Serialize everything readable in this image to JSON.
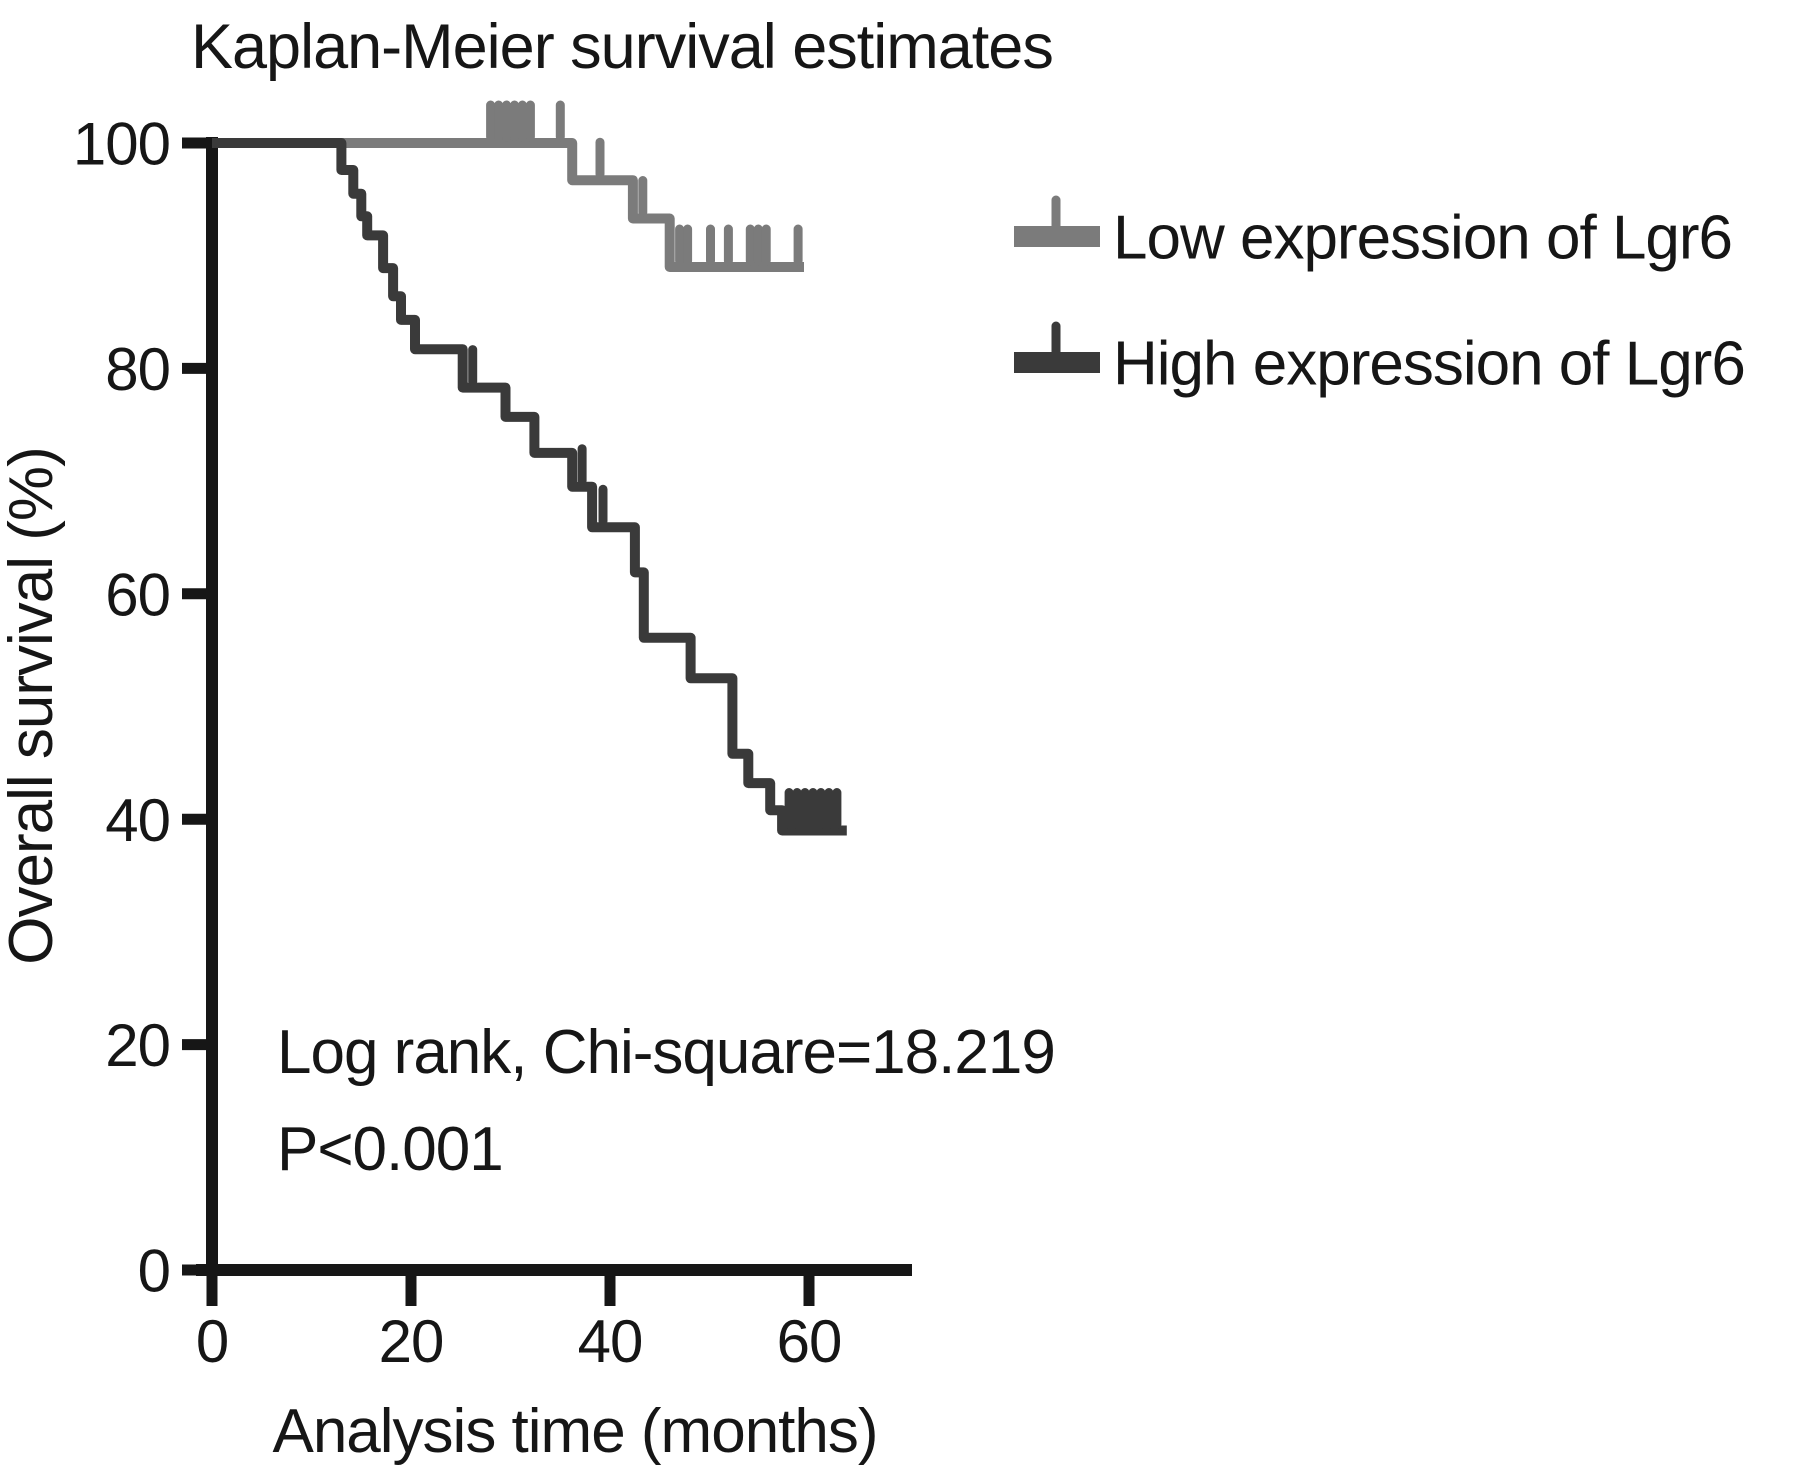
{
  "title": "Kaplan-Meier survival estimates",
  "annotation": {
    "line1": "Log rank, Chi-square=18.219",
    "line2": "P<0.001"
  },
  "legend": [
    {
      "label": "Low expression of Lgr6",
      "color": "#7b7b7b"
    },
    {
      "label": "High expression of Lgr6",
      "color": "#3a3a3a"
    }
  ],
  "colors": {
    "axis": "#161616",
    "text": "#161616",
    "background": "#ffffff"
  },
  "chart_data": {
    "type": "line",
    "subtype": "kaplan-meier-step",
    "title": "Kaplan-Meier survival estimates",
    "xlabel": "Analysis time (months)",
    "ylabel": "Overall survival (%)",
    "xlim": [
      0,
      70
    ],
    "ylim": [
      0,
      100
    ],
    "x_ticks": [
      0,
      20,
      40,
      60
    ],
    "y_ticks": [
      0,
      20,
      40,
      60,
      80,
      100
    ],
    "grid": false,
    "legend_position": "right",
    "series": [
      {
        "name": "Low expression of Lgr6",
        "color": "#7b7b7b",
        "points": [
          [
            0,
            100
          ],
          [
            36.2,
            100
          ],
          [
            36.2,
            96.7
          ],
          [
            42.3,
            96.7
          ],
          [
            42.3,
            93.3
          ],
          [
            46,
            93.3
          ],
          [
            46,
            89
          ],
          [
            59.5,
            89
          ]
        ],
        "censors": [
          [
            28,
            100
          ],
          [
            28.8,
            100
          ],
          [
            29.6,
            100
          ],
          [
            30.4,
            100
          ],
          [
            31.2,
            100
          ],
          [
            32,
            100
          ],
          [
            35,
            100
          ],
          [
            39,
            96.7
          ],
          [
            43.3,
            93.3
          ],
          [
            47,
            89
          ],
          [
            47.8,
            89
          ],
          [
            50.1,
            89
          ],
          [
            51.9,
            89
          ],
          [
            54.1,
            89
          ],
          [
            54.9,
            89
          ],
          [
            55.7,
            89
          ],
          [
            58.9,
            89
          ]
        ]
      },
      {
        "name": "High expression of Lgr6",
        "color": "#3a3a3a",
        "points": [
          [
            0,
            100
          ],
          [
            13,
            100
          ],
          [
            13,
            97.6
          ],
          [
            14.2,
            97.6
          ],
          [
            14.2,
            95.5
          ],
          [
            15,
            95.5
          ],
          [
            15,
            93.5
          ],
          [
            15.6,
            93.5
          ],
          [
            15.6,
            91.8
          ],
          [
            17.2,
            91.8
          ],
          [
            17.2,
            88.9
          ],
          [
            18.2,
            88.9
          ],
          [
            18.2,
            86.4
          ],
          [
            19,
            86.4
          ],
          [
            19,
            84.3
          ],
          [
            20.4,
            84.3
          ],
          [
            20.4,
            81.7
          ],
          [
            25.2,
            81.7
          ],
          [
            25.2,
            78.3
          ],
          [
            29.5,
            78.3
          ],
          [
            29.5,
            75.7
          ],
          [
            32.4,
            75.7
          ],
          [
            32.4,
            72.5
          ],
          [
            36.2,
            72.5
          ],
          [
            36.2,
            69.5
          ],
          [
            38.2,
            69.5
          ],
          [
            38.2,
            65.9
          ],
          [
            42.5,
            65.9
          ],
          [
            42.5,
            61.9
          ],
          [
            43.4,
            61.9
          ],
          [
            43.4,
            56.1
          ],
          [
            48.1,
            56.1
          ],
          [
            48.1,
            52.5
          ],
          [
            52.3,
            52.5
          ],
          [
            52.3,
            45.8
          ],
          [
            53.9,
            45.8
          ],
          [
            53.9,
            43.2
          ],
          [
            56.1,
            43.2
          ],
          [
            56.1,
            40.8
          ],
          [
            57.3,
            40.8
          ],
          [
            57.3,
            39
          ],
          [
            63.8,
            39
          ]
        ],
        "censors": [
          [
            26.2,
            78.3
          ],
          [
            37.2,
            69.5
          ],
          [
            39.3,
            65.9
          ],
          [
            58,
            39
          ],
          [
            58.8,
            39
          ],
          [
            59.6,
            39
          ],
          [
            60.4,
            39
          ],
          [
            61.2,
            39
          ],
          [
            62,
            39
          ],
          [
            62.8,
            39
          ]
        ]
      }
    ]
  }
}
